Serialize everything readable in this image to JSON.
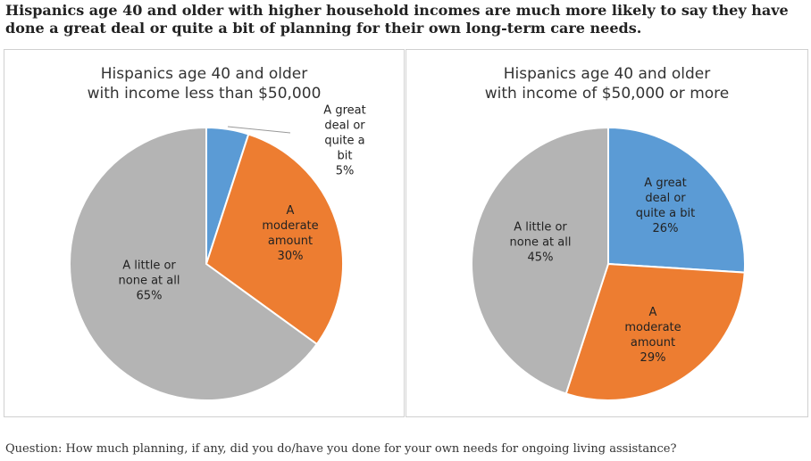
{
  "headline": "Hispanics age 40 and older with higher household incomes are much more likely to say they have done a great deal or quite a bit of planning for their own long-term care needs.",
  "footer": "Question: How much planning, if any, did you do/have you done for your own needs for ongoing living assistance?",
  "colors": {
    "great_deal": "#5b9bd5",
    "moderate": "#ed7d31",
    "little": "#b4b4b4"
  },
  "chart_data": [
    {
      "type": "pie",
      "title_line1": "Hispanics age 40 and older",
      "title_line2": "with income less than $50,000",
      "slices": [
        {
          "label": "A great deal or\nquite a bit\n5%",
          "value": 5,
          "color": "#5b9bd5"
        },
        {
          "label": "A\nmoderate\namount\n30%",
          "value": 30,
          "color": "#ed7d31"
        },
        {
          "label": "A little or\nnone at all\n65%",
          "value": 65,
          "color": "#b4b4b4"
        }
      ]
    },
    {
      "type": "pie",
      "title_line1": "Hispanics age 40 and older",
      "title_line2": "with income of $50,000 or more",
      "slices": [
        {
          "label": "A great\ndeal or\nquite a bit\n26%",
          "value": 26,
          "color": "#5b9bd5"
        },
        {
          "label": "A\nmoderate\namount\n29%",
          "value": 29,
          "color": "#ed7d31"
        },
        {
          "label": "A little or\nnone at all\n45%",
          "value": 45,
          "color": "#b4b4b4"
        }
      ]
    }
  ]
}
